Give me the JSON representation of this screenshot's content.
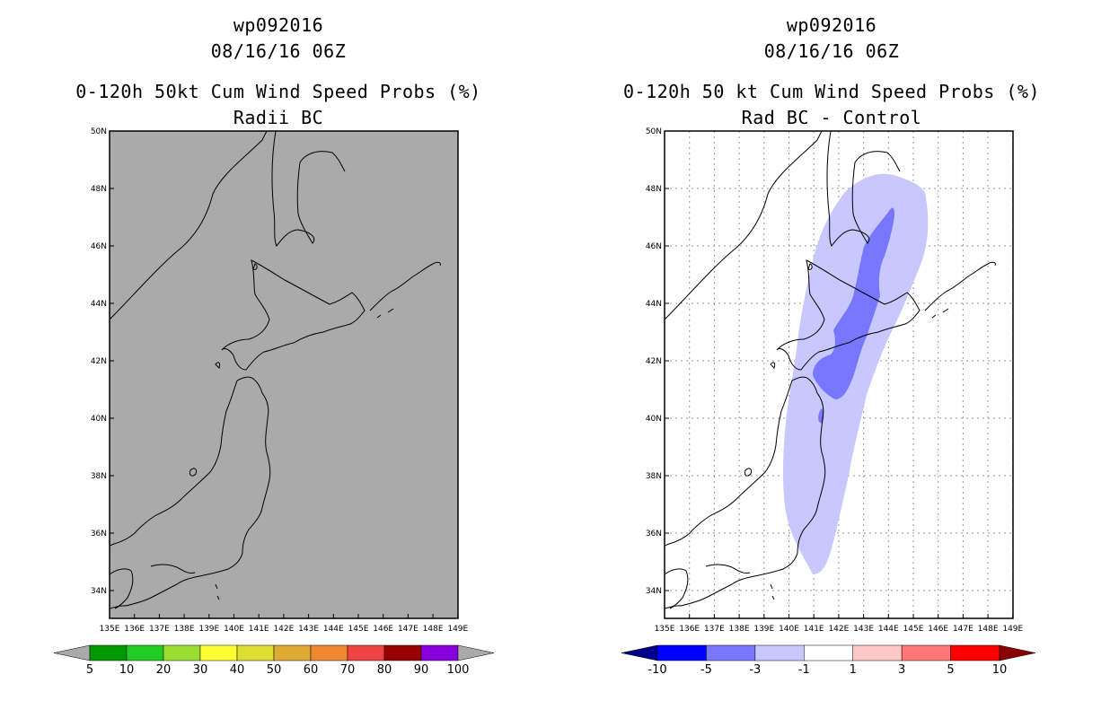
{
  "left_panel": {
    "title_storm": "wp092016",
    "title_time": "08/16/16 06Z",
    "title_product": "0-120h 50kt Cum Wind Speed Probs (%)",
    "title_sub": "Radii BC",
    "background_color": "#aaaaaa",
    "colorbar": {
      "labels": [
        "5",
        "10",
        "20",
        "30",
        "40",
        "50",
        "60",
        "70",
        "80",
        "90",
        "100"
      ],
      "colors": [
        "#aaaaaa",
        "#009900",
        "#22cc22",
        "#99dd33",
        "#ffff33",
        "#dddd33",
        "#ddaa33",
        "#ee8833",
        "#ee4444",
        "#990000",
        "#8800dd",
        "#aaaaaa"
      ]
    }
  },
  "right_panel": {
    "title_storm": "wp092016",
    "title_time": "08/16/16 06Z",
    "title_product": "0-120h 50 kt Cum Wind Speed Probs (%)",
    "title_sub": "Rad BC - Control",
    "colorbar": {
      "labels": [
        "-10",
        "-5",
        "-3",
        "-1",
        "1",
        "3",
        "5",
        "10"
      ],
      "colors": [
        "#000088",
        "#0000ff",
        "#7777ff",
        "#c8c8ff",
        "#ffffff",
        "#ffc8c8",
        "#ff7777",
        "#ff0000",
        "#880000"
      ]
    },
    "shading": [
      {
        "range": "-3 to -1",
        "color": "#c8c8ff"
      },
      {
        "range": "-5 to -3",
        "color": "#7777ff"
      }
    ]
  },
  "map": {
    "lat_labels": [
      "50N",
      "48N",
      "46N",
      "44N",
      "42N",
      "40N",
      "38N",
      "36N",
      "34N"
    ],
    "lon_labels": [
      "135E",
      "136E",
      "137E",
      "138E",
      "139E",
      "140E",
      "141E",
      "142E",
      "143E",
      "144E",
      "145E",
      "146E",
      "147E",
      "148E",
      "149E"
    ]
  }
}
